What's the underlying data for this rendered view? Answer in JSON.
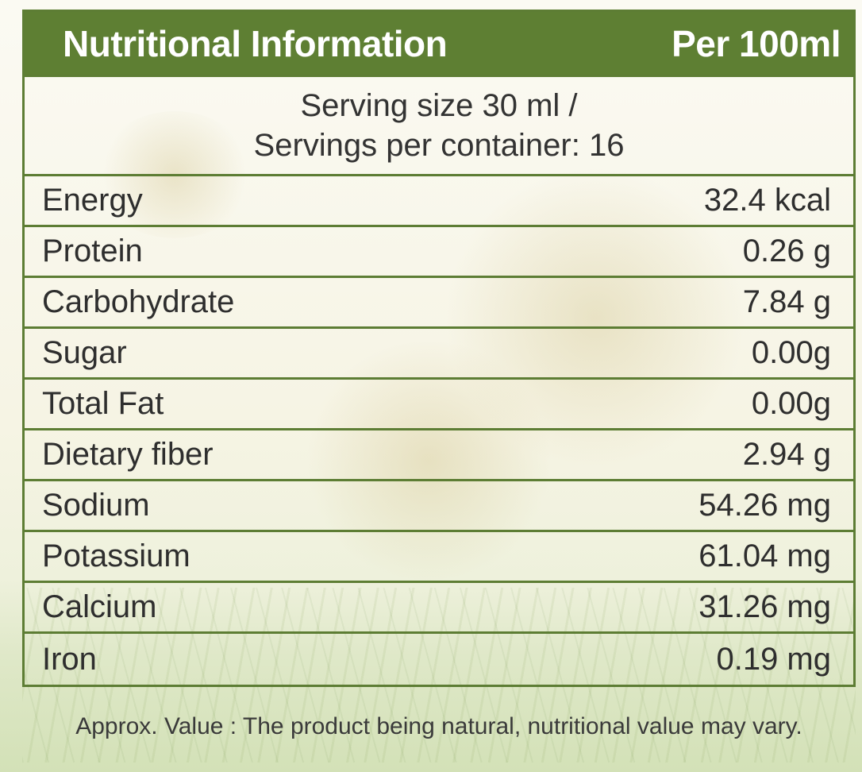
{
  "header": {
    "title": "Nutritional Information",
    "per": "Per 100ml"
  },
  "serving": {
    "line1": "Serving size 30 ml /",
    "line2": "Servings per container: 16"
  },
  "rows": [
    {
      "label": "Energy",
      "value": "32.4 kcal"
    },
    {
      "label": "Protein",
      "value": "0.26 g"
    },
    {
      "label": "Carbohydrate",
      "value": "7.84 g"
    },
    {
      "label": "Sugar",
      "value": "0.00g"
    },
    {
      "label": "Total Fat",
      "value": "0.00g"
    },
    {
      "label": "Dietary fiber",
      "value": "2.94 g"
    },
    {
      "label": "Sodium",
      "value": "54.26 mg"
    },
    {
      "label": "Potassium",
      "value": "61.04 mg"
    },
    {
      "label": "Calcium",
      "value": "31.26 mg"
    },
    {
      "label": "Iron",
      "value": "0.19 mg"
    }
  ],
  "footer": "Approx. Value : The product being natural, nutritional value may vary.",
  "colors": {
    "header_green": "#5e7f33",
    "border_green": "#5d7d34",
    "text": "#2e2e2e"
  }
}
